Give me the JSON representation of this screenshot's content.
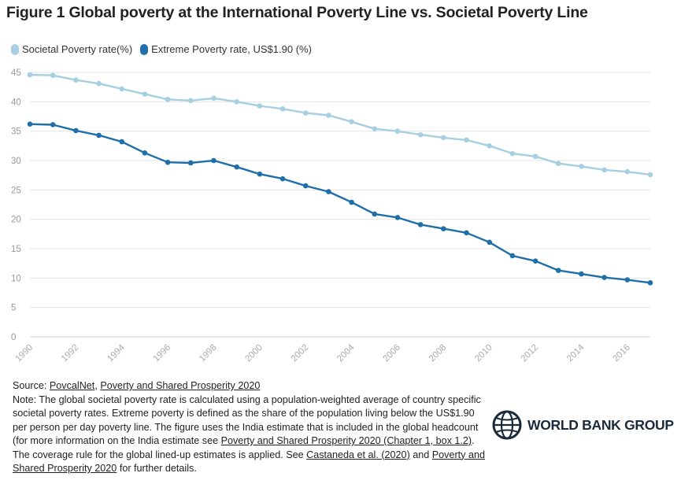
{
  "title": "Figure 1 Global poverty at the International Poverty Line vs. Societal Poverty Line",
  "colors": {
    "societal": "#a6cfe2",
    "extreme": "#1f6fa9",
    "grid": "#e6e6e6",
    "axis_text": "#999999"
  },
  "chart_data": {
    "type": "line",
    "x": [
      1990,
      1991,
      1992,
      1993,
      1994,
      1995,
      1996,
      1997,
      1998,
      1999,
      2000,
      2001,
      2002,
      2003,
      2004,
      2005,
      2006,
      2007,
      2008,
      2009,
      2010,
      2011,
      2012,
      2013,
      2014,
      2015,
      2016,
      2017
    ],
    "x_tick_labels": [
      "1990",
      "1992",
      "1994",
      "1996",
      "1998",
      "2000",
      "2002",
      "2004",
      "2006",
      "2008",
      "2010",
      "2012",
      "2014",
      "2016"
    ],
    "y_tick_labels": [
      "0",
      "5",
      "10",
      "15",
      "20",
      "25",
      "30",
      "35",
      "40",
      "45"
    ],
    "ylim": [
      0,
      45
    ],
    "grid": true,
    "legend_position": "top-left",
    "series": [
      {
        "name": "Societal Poverty rate(%)",
        "values": [
          44.6,
          44.5,
          43.7,
          43.1,
          42.2,
          41.3,
          40.4,
          40.2,
          40.6,
          40.0,
          39.3,
          38.8,
          38.1,
          37.7,
          36.6,
          35.4,
          35.0,
          34.4,
          33.9,
          33.5,
          32.5,
          31.2,
          30.7,
          29.5,
          29.0,
          28.4,
          28.1,
          27.6
        ]
      },
      {
        "name": "Extreme Poverty rate, US$1.90 (%)",
        "values": [
          36.2,
          36.1,
          35.1,
          34.3,
          33.2,
          31.3,
          29.7,
          29.6,
          30.0,
          28.9,
          27.7,
          26.9,
          25.7,
          24.7,
          22.9,
          20.9,
          20.3,
          19.1,
          18.4,
          17.7,
          16.1,
          13.8,
          12.9,
          11.3,
          10.7,
          10.1,
          9.7,
          9.2
        ]
      }
    ]
  },
  "source": {
    "label": "Source: ",
    "link1": "PovcalNet",
    "sep": ", ",
    "link2": "Poverty and Shared Prosperity 2020",
    "note_1": "Note: The global societal poverty rate is calculated using a population-weighted average of country specific societal poverty rates. Extreme poverty is defined as the share of the population living below the US$1.90 per person per day poverty line. The figure uses the India estimate that is included in the global headcount (for more information on the India estimate see ",
    "link3": "Poverty and Shared Prosperity 2020 (Chapter 1, box 1.2)",
    "note_2": ". The coverage rule for the global lined-up estimates is applied. See ",
    "link4": "Castaneda et al. (2020)",
    "note_3": " and ",
    "link5": "Poverty and Shared Prosperity 2020",
    "note_4": " for further details."
  },
  "logo": {
    "text": "WORLD BANK GROUP",
    "icon": "globe-icon"
  }
}
